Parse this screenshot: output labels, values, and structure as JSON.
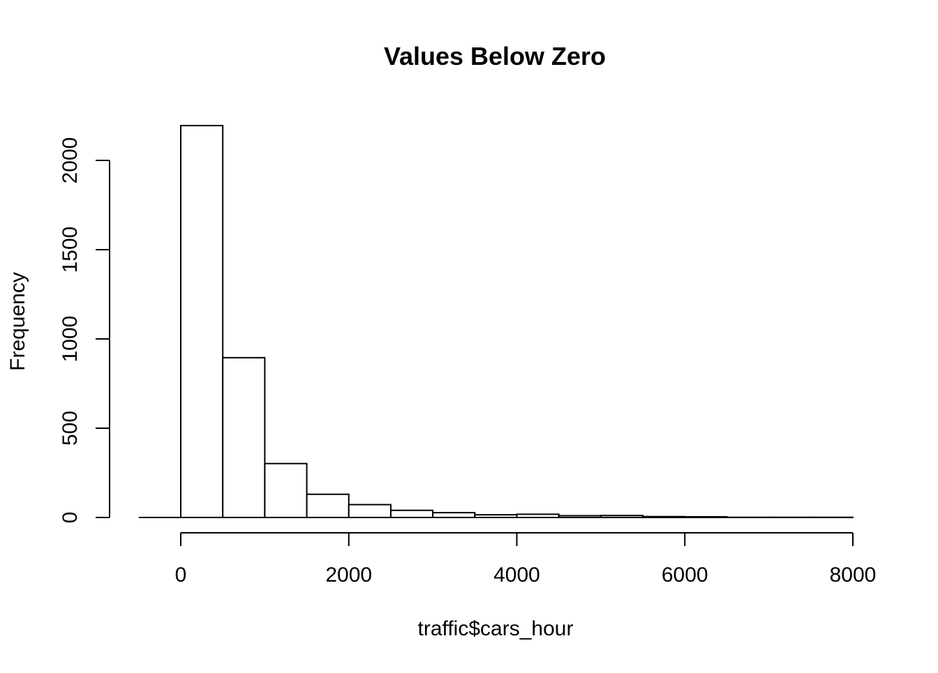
{
  "chart_data": {
    "type": "bar",
    "title": "Values Below Zero",
    "xlabel": "traffic$cars_hour",
    "ylabel": "Frequency",
    "bins": [
      {
        "x0": -500,
        "x1": 0,
        "count": 0
      },
      {
        "x0": 0,
        "x1": 500,
        "count": 2195
      },
      {
        "x0": 500,
        "x1": 1000,
        "count": 895
      },
      {
        "x0": 1000,
        "x1": 1500,
        "count": 302
      },
      {
        "x0": 1500,
        "x1": 2000,
        "count": 130
      },
      {
        "x0": 2000,
        "x1": 2500,
        "count": 72
      },
      {
        "x0": 2500,
        "x1": 3000,
        "count": 40
      },
      {
        "x0": 3000,
        "x1": 3500,
        "count": 27
      },
      {
        "x0": 3500,
        "x1": 4000,
        "count": 15
      },
      {
        "x0": 4000,
        "x1": 4500,
        "count": 18
      },
      {
        "x0": 4500,
        "x1": 5000,
        "count": 10
      },
      {
        "x0": 5000,
        "x1": 5500,
        "count": 11
      },
      {
        "x0": 5500,
        "x1": 6000,
        "count": 5
      },
      {
        "x0": 6000,
        "x1": 6500,
        "count": 4
      },
      {
        "x0": 6500,
        "x1": 7000,
        "count": 1
      },
      {
        "x0": 7000,
        "x1": 7500,
        "count": 1
      },
      {
        "x0": 7500,
        "x1": 8000,
        "count": 1
      }
    ],
    "x_ticks": [
      0,
      2000,
      4000,
      6000,
      8000
    ],
    "x_tick_labels": [
      "0",
      "2000",
      "4000",
      "6000",
      "8000"
    ],
    "y_ticks": [
      0,
      500,
      1000,
      1500,
      2000
    ],
    "y_tick_labels": [
      "0",
      "500",
      "1000",
      "1500",
      "2000"
    ],
    "xlim": [
      -500,
      8000
    ],
    "ylim": [
      0,
      2195
    ],
    "grid": false,
    "legend": "none",
    "bar_fill": "#ffffff",
    "bar_stroke": "#000000"
  }
}
